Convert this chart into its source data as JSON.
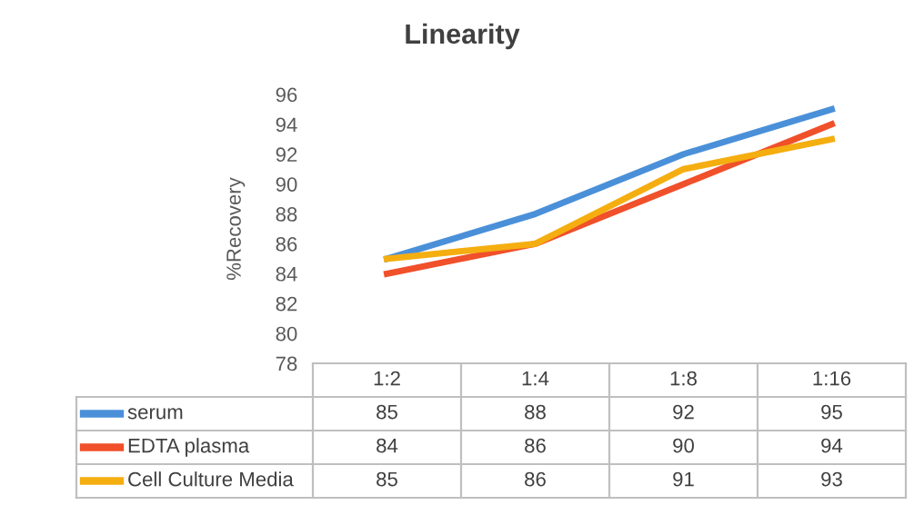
{
  "chart_data": {
    "type": "line",
    "title": "Linearity",
    "ylabel": "%Recovery",
    "categories": [
      "1:2",
      "1:4",
      "1:8",
      "1:16"
    ],
    "series": [
      {
        "name": "serum",
        "color": "#4a90d9",
        "values": [
          85,
          88,
          92,
          95
        ]
      },
      {
        "name": "EDTA plasma",
        "color": "#f0502a",
        "values": [
          84,
          86,
          90,
          94
        ]
      },
      {
        "name": "Cell Culture Media",
        "color": "#f5ae10",
        "values": [
          85,
          86,
          91,
          93
        ]
      }
    ],
    "ylim": [
      78,
      96
    ],
    "yticks": [
      78,
      80,
      82,
      84,
      86,
      88,
      90,
      92,
      94,
      96
    ],
    "data_labels": true,
    "legend": "bottom",
    "marker": "none",
    "line_style": "solid"
  }
}
